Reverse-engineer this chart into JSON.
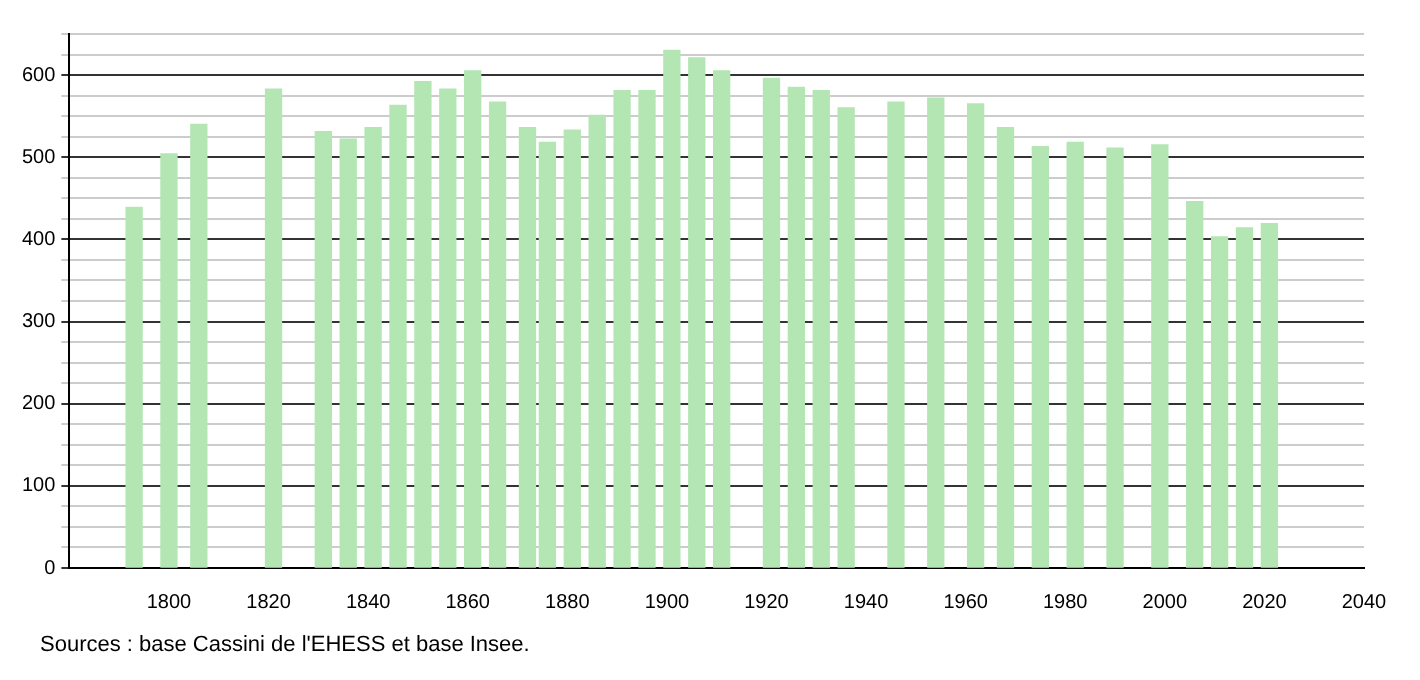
{
  "chart_data": {
    "type": "bar",
    "x": [
      1793,
      1800,
      1806,
      1821,
      1831,
      1836,
      1841,
      1846,
      1851,
      1856,
      1861,
      1866,
      1872,
      1876,
      1881,
      1886,
      1891,
      1896,
      1901,
      1906,
      1911,
      1921,
      1926,
      1931,
      1936,
      1946,
      1954,
      1962,
      1968,
      1975,
      1982,
      1990,
      1999,
      2006,
      2011,
      2016,
      2021
    ],
    "values": [
      439,
      504,
      540,
      583,
      531,
      522,
      536,
      563,
      592,
      583,
      605,
      567,
      536,
      518,
      533,
      551,
      581,
      581,
      630,
      621,
      605,
      596,
      585,
      581,
      560,
      567,
      572,
      565,
      536,
      513,
      518,
      511,
      515,
      446,
      403,
      414,
      419
    ],
    "color": "#b3e6b3",
    "xlim": [
      1780,
      2040
    ],
    "xticks": [
      1800,
      1820,
      1840,
      1860,
      1880,
      1900,
      1920,
      1940,
      1960,
      1980,
      2000,
      2020,
      2040
    ],
    "ylim": [
      0,
      650
    ],
    "yticks": [
      0,
      {
        "value": 25,
        "label": null
      },
      {
        "value": 50,
        "label": null
      },
      {
        "value": 75,
        "label": null
      },
      100,
      {
        "value": 125,
        "label": null
      },
      {
        "value": 150,
        "label": null
      },
      {
        "value": 175,
        "label": null
      },
      200,
      {
        "value": 225,
        "label": null
      },
      {
        "value": 250,
        "label": null
      },
      {
        "value": 275,
        "label": null
      },
      300,
      {
        "value": 325,
        "label": null
      },
      {
        "value": 350,
        "label": null
      },
      {
        "value": 375,
        "label": null
      },
      400,
      {
        "value": 425,
        "label": null
      },
      {
        "value": 450,
        "label": null
      },
      {
        "value": 475,
        "label": null
      },
      500,
      {
        "value": 525,
        "label": null
      },
      {
        "value": 550,
        "label": null
      },
      {
        "value": 575,
        "label": null
      },
      600,
      {
        "value": 625,
        "label": null
      },
      {
        "value": 650,
        "label": null
      }
    ],
    "grid": "y",
    "legend": false,
    "annotations": [
      "Sources : base Cassini de l'EHESS et base Insee."
    ]
  }
}
